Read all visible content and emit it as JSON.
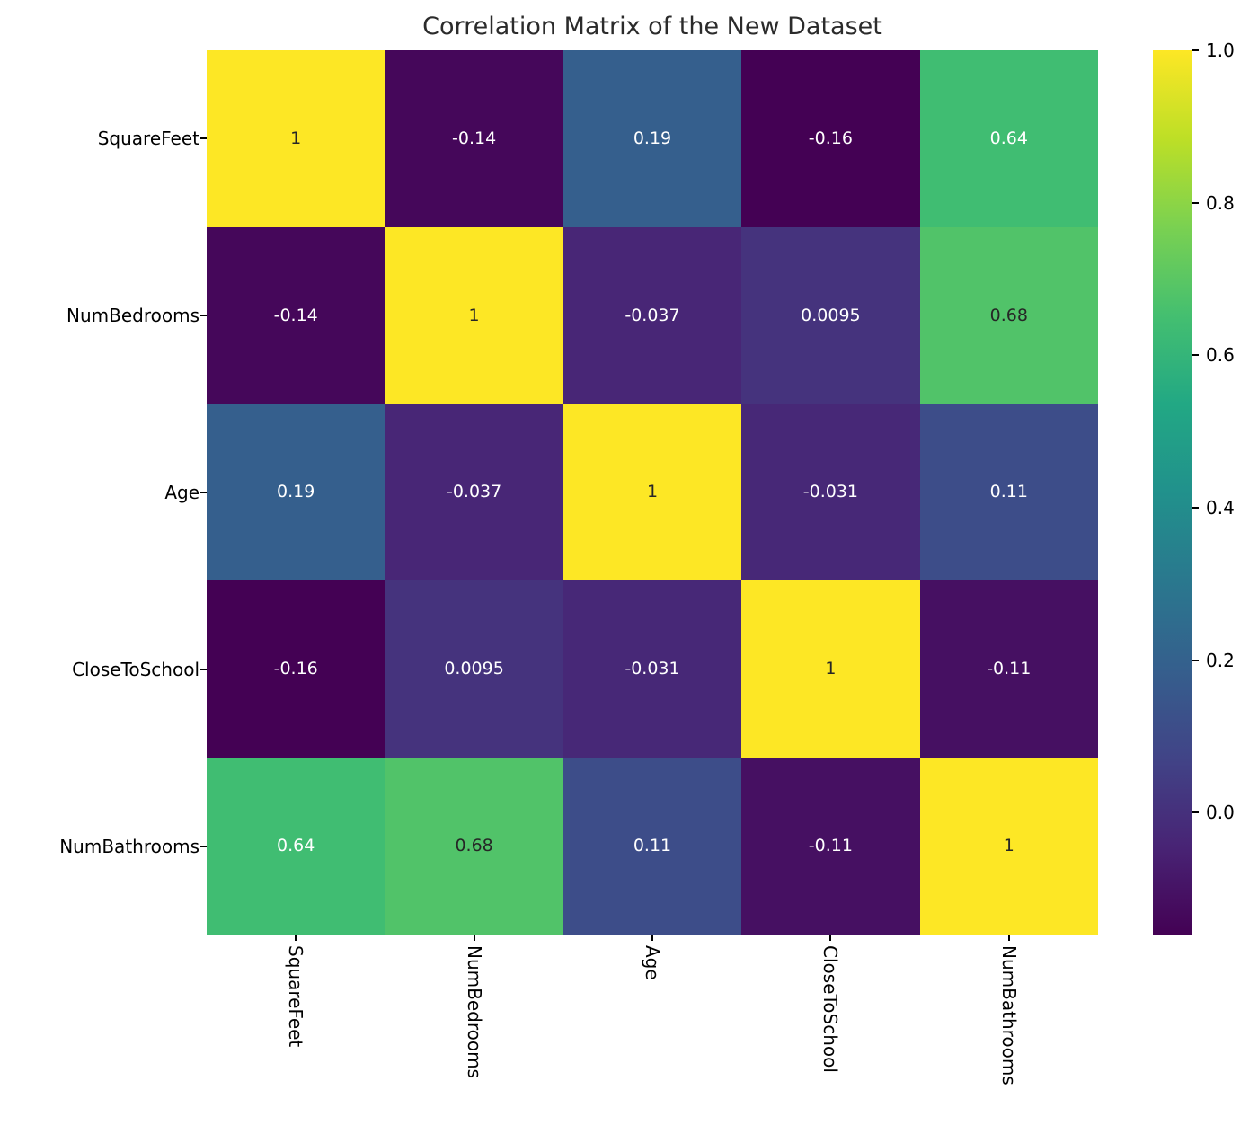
{
  "title": "Correlation Matrix of the New Dataset",
  "chart_data": {
    "type": "heatmap",
    "title": "Correlation Matrix of the New Dataset",
    "x_labels": [
      "SquareFeet",
      "NumBedrooms",
      "Age",
      "CloseToSchool",
      "NumBathrooms"
    ],
    "y_labels": [
      "SquareFeet",
      "NumBedrooms",
      "Age",
      "CloseToSchool",
      "NumBathrooms"
    ],
    "matrix": [
      [
        1,
        -0.14,
        0.19,
        -0.16,
        0.64
      ],
      [
        -0.14,
        1,
        -0.037,
        0.0095,
        0.68
      ],
      [
        0.19,
        -0.037,
        1,
        -0.031,
        0.11
      ],
      [
        -0.16,
        0.0095,
        -0.031,
        1,
        -0.11
      ],
      [
        0.64,
        0.68,
        0.11,
        -0.11,
        1
      ]
    ],
    "annotations": [
      [
        "1",
        "-0.14",
        "0.19",
        "-0.16",
        "0.64"
      ],
      [
        "-0.14",
        "1",
        "-0.037",
        "0.0095",
        "0.68"
      ],
      [
        "0.19",
        "-0.037",
        "1",
        "-0.031",
        "0.11"
      ],
      [
        "-0.16",
        "0.0095",
        "-0.031",
        "1",
        "-0.11"
      ],
      [
        "0.64",
        "0.68",
        "0.11",
        "-0.11",
        "1"
      ]
    ],
    "colormap": {
      "name": "viridis",
      "vmin": -0.16,
      "vmax": 1.0,
      "stops": [
        "#440154",
        "#482475",
        "#414487",
        "#355f8d",
        "#2a788e",
        "#21918c",
        "#22a884",
        "#44bf70",
        "#7ad151",
        "#bddf26",
        "#fde725"
      ]
    },
    "colorbar": {
      "ticks": [
        1.0,
        0.8,
        0.6,
        0.4,
        0.2,
        0.0
      ],
      "tick_labels": [
        "1.0",
        "0.8",
        "0.6",
        "0.4",
        "0.2",
        "0.0"
      ]
    },
    "annotation_colors": {
      "dark_text": "#262626",
      "light_text": "#ffffff",
      "luminance_threshold": 0.408
    },
    "layout": {
      "grid": false,
      "legend_position": "right-colorbar"
    }
  }
}
